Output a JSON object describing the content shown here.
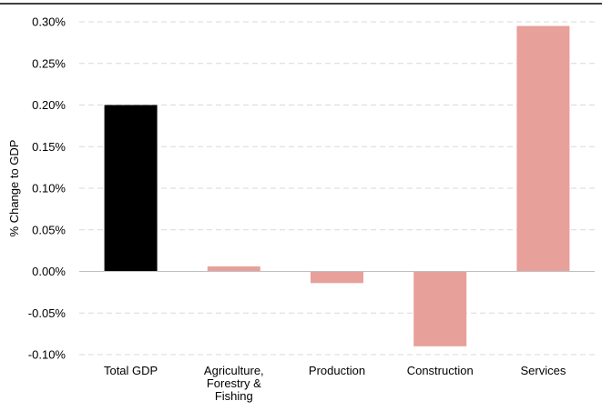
{
  "chart_data": {
    "type": "bar",
    "title": "",
    "xlabel": "",
    "ylabel": "% Change to GDP",
    "ylim": [
      -0.1,
      0.3
    ],
    "y_ticks": [
      0.3,
      0.25,
      0.2,
      0.15,
      0.1,
      0.05,
      0.0,
      -0.05,
      -0.1
    ],
    "y_tick_labels": [
      "0.30%",
      "0.25%",
      "0.20%",
      "0.15%",
      "0.10%",
      "0.05%",
      "0.00%",
      "-0.05%",
      "-0.10%"
    ],
    "categories": [
      [
        "Total GDP"
      ],
      [
        "Agriculture,",
        "Forestry &",
        "Fishing"
      ],
      [
        "Production"
      ],
      [
        "Construction"
      ],
      [
        "Services"
      ]
    ],
    "values": [
      0.2,
      0.006,
      -0.014,
      -0.09,
      0.295
    ],
    "bar_colors": [
      "#000000",
      "#e8a09a",
      "#e8a09a",
      "#e8a09a",
      "#e8a09a"
    ],
    "grid": true,
    "grid_color": "#d9d9d9",
    "legend": "none"
  }
}
